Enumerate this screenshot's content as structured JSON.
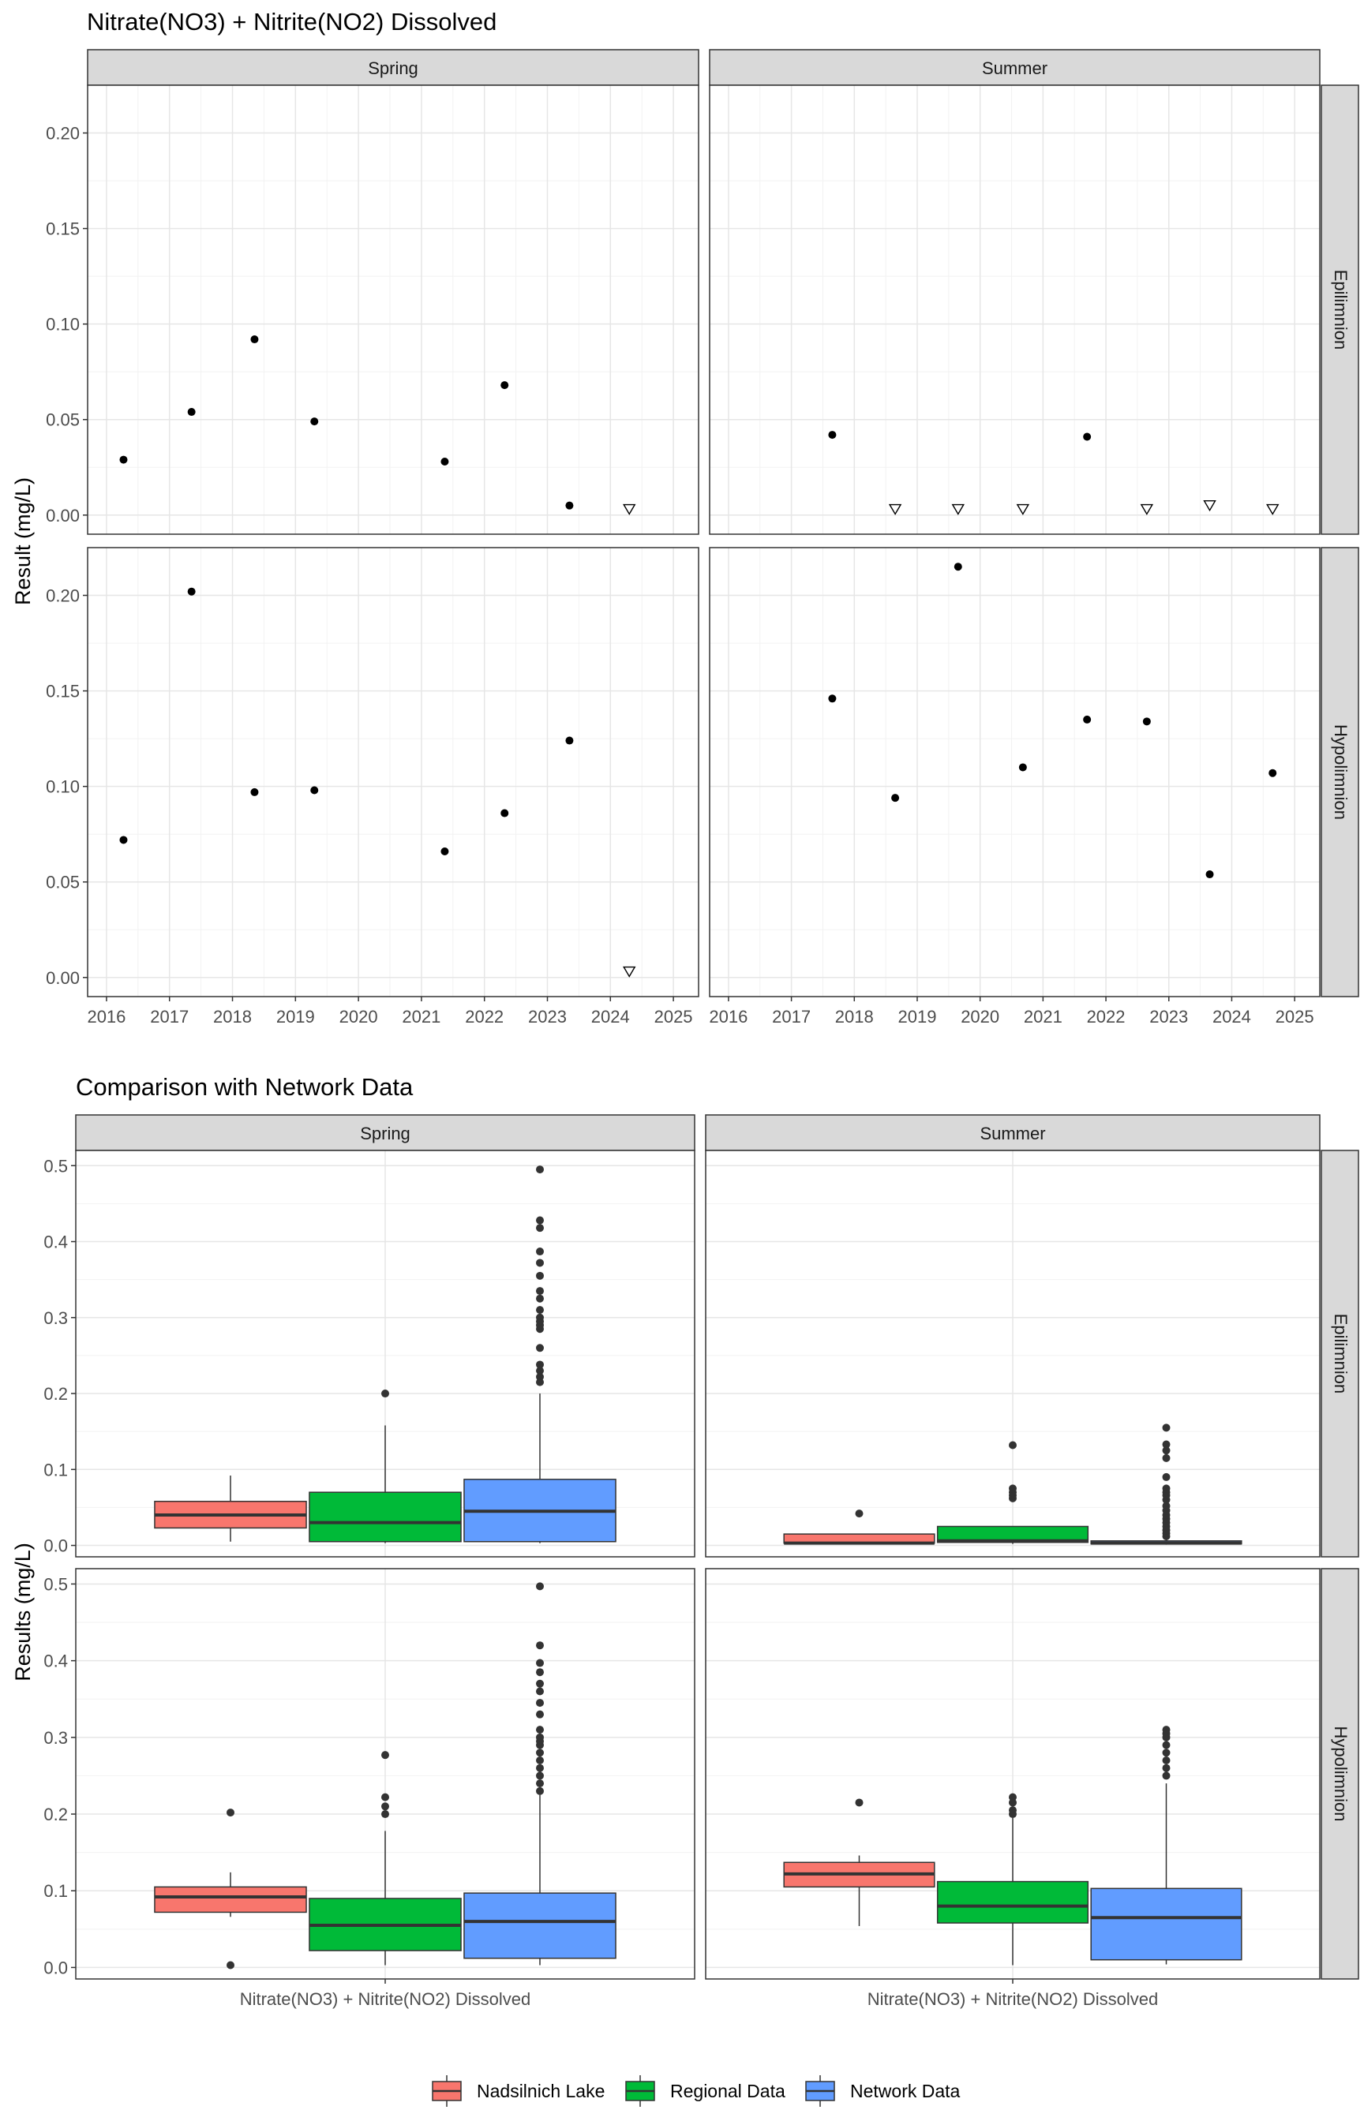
{
  "chart_data": [
    {
      "type": "scatter",
      "title": "Nitrate(NO3) + Nitrite(NO2) Dissolved",
      "ylabel": "Result (mg/L)",
      "xlabel": "",
      "xlim": [
        2015.7,
        2025.4
      ],
      "ylim": [
        -0.01,
        0.225
      ],
      "x_ticks": [
        "2016",
        "2017",
        "2018",
        "2019",
        "2020",
        "2021",
        "2022",
        "2023",
        "2024",
        "2025"
      ],
      "y_ticks": [
        "0.00",
        "0.05",
        "0.10",
        "0.15",
        "0.20"
      ],
      "col_facets": [
        "Spring",
        "Summer"
      ],
      "row_facets": [
        "Epilimnion",
        "Hypolimnion"
      ],
      "grid": true,
      "panels": [
        {
          "season": "Spring",
          "layer": "Epilimnion",
          "detected": [
            [
              2016.27,
              0.029
            ],
            [
              2017.35,
              0.054
            ],
            [
              2018.35,
              0.092
            ],
            [
              2019.3,
              0.049
            ],
            [
              2021.37,
              0.028
            ],
            [
              2022.32,
              0.068
            ],
            [
              2023.35,
              0.005
            ]
          ],
          "nondetect": [
            [
              2024.3,
              0.003
            ]
          ]
        },
        {
          "season": "Summer",
          "layer": "Epilimnion",
          "detected": [
            [
              2017.65,
              0.042
            ],
            [
              2021.7,
              0.041
            ]
          ],
          "nondetect": [
            [
              2018.65,
              0.003
            ],
            [
              2019.65,
              0.003
            ],
            [
              2020.68,
              0.003
            ],
            [
              2022.65,
              0.003
            ],
            [
              2023.65,
              0.005
            ],
            [
              2024.65,
              0.003
            ]
          ]
        },
        {
          "season": "Spring",
          "layer": "Hypolimnion",
          "detected": [
            [
              2016.27,
              0.072
            ],
            [
              2017.35,
              0.202
            ],
            [
              2018.35,
              0.097
            ],
            [
              2019.3,
              0.098
            ],
            [
              2021.37,
              0.066
            ],
            [
              2022.32,
              0.086
            ],
            [
              2023.35,
              0.124
            ]
          ],
          "nondetect": [
            [
              2024.3,
              0.003
            ]
          ]
        },
        {
          "season": "Summer",
          "layer": "Hypolimnion",
          "detected": [
            [
              2017.65,
              0.146
            ],
            [
              2018.65,
              0.094
            ],
            [
              2019.65,
              0.215
            ],
            [
              2020.68,
              0.11
            ],
            [
              2021.7,
              0.135
            ],
            [
              2022.65,
              0.134
            ],
            [
              2023.65,
              0.054
            ],
            [
              2024.65,
              0.107
            ]
          ],
          "nondetect": []
        }
      ]
    },
    {
      "type": "box",
      "title": "Comparison with Network Data",
      "ylabel": "Results (mg/L)",
      "x_category": "Nitrate(NO3) + Nitrite(NO2) Dissolved",
      "ylim": [
        -0.015,
        0.52
      ],
      "y_ticks": [
        "0.0",
        "0.1",
        "0.2",
        "0.3",
        "0.4",
        "0.5"
      ],
      "col_facets": [
        "Spring",
        "Summer"
      ],
      "row_facets": [
        "Epilimnion",
        "Hypolimnion"
      ],
      "grid": true,
      "legend_position": "bottom",
      "groups": [
        {
          "name": "Nadsilnich Lake",
          "color": "#F8766D"
        },
        {
          "name": "Regional Data",
          "color": "#00BA38"
        },
        {
          "name": "Network Data",
          "color": "#619CFF"
        }
      ],
      "panels": [
        {
          "season": "Spring",
          "layer": "Epilimnion",
          "boxes": [
            {
              "group": "Nadsilnich Lake",
              "min": 0.005,
              "q1": 0.023,
              "median": 0.04,
              "q3": 0.058,
              "max": 0.092,
              "outliers": []
            },
            {
              "group": "Regional Data",
              "min": 0.003,
              "q1": 0.005,
              "median": 0.03,
              "q3": 0.07,
              "max": 0.158,
              "outliers": [
                0.2
              ]
            },
            {
              "group": "Network Data",
              "min": 0.003,
              "q1": 0.005,
              "median": 0.045,
              "q3": 0.087,
              "max": 0.2,
              "outliers": [
                0.215,
                0.222,
                0.23,
                0.238,
                0.26,
                0.285,
                0.29,
                0.295,
                0.3,
                0.31,
                0.325,
                0.335,
                0.355,
                0.372,
                0.387,
                0.418,
                0.428,
                0.495
              ]
            }
          ]
        },
        {
          "season": "Summer",
          "layer": "Epilimnion",
          "boxes": [
            {
              "group": "Nadsilnich Lake",
              "min": 0.002,
              "q1": 0.003,
              "median": 0.003,
              "q3": 0.015,
              "max": 0.015,
              "outliers": [
                0.042
              ]
            },
            {
              "group": "Regional Data",
              "min": 0.002,
              "q1": 0.004,
              "median": 0.006,
              "q3": 0.025,
              "max": 0.025,
              "outliers": [
                0.062,
                0.066,
                0.07,
                0.075,
                0.132
              ]
            },
            {
              "group": "Network Data",
              "min": 0.001,
              "q1": 0.002,
              "median": 0.003,
              "q3": 0.006,
              "max": 0.01,
              "outliers": [
                0.012,
                0.016,
                0.02,
                0.025,
                0.03,
                0.035,
                0.04,
                0.046,
                0.052,
                0.06,
                0.066,
                0.07,
                0.075,
                0.09,
                0.115,
                0.125,
                0.133,
                0.155
              ]
            }
          ]
        },
        {
          "season": "Spring",
          "layer": "Hypolimnion",
          "boxes": [
            {
              "group": "Nadsilnich Lake",
              "min": 0.066,
              "q1": 0.072,
              "median": 0.092,
              "q3": 0.105,
              "max": 0.124,
              "outliers": [
                0.003,
                0.202
              ]
            },
            {
              "group": "Regional Data",
              "min": 0.003,
              "q1": 0.022,
              "median": 0.055,
              "q3": 0.09,
              "max": 0.178,
              "outliers": [
                0.2,
                0.21,
                0.222,
                0.277
              ]
            },
            {
              "group": "Network Data",
              "min": 0.003,
              "q1": 0.012,
              "median": 0.06,
              "q3": 0.097,
              "max": 0.225,
              "outliers": [
                0.23,
                0.24,
                0.25,
                0.26,
                0.27,
                0.28,
                0.29,
                0.295,
                0.3,
                0.31,
                0.33,
                0.345,
                0.36,
                0.37,
                0.385,
                0.397,
                0.42,
                0.497
              ]
            }
          ]
        },
        {
          "season": "Summer",
          "layer": "Hypolimnion",
          "boxes": [
            {
              "group": "Nadsilnich Lake",
              "min": 0.054,
              "q1": 0.105,
              "median": 0.122,
              "q3": 0.137,
              "max": 0.146,
              "outliers": [
                0.215
              ]
            },
            {
              "group": "Regional Data",
              "min": 0.003,
              "q1": 0.058,
              "median": 0.08,
              "q3": 0.112,
              "max": 0.195,
              "outliers": [
                0.2,
                0.205,
                0.215,
                0.222
              ]
            },
            {
              "group": "Network Data",
              "min": 0.004,
              "q1": 0.01,
              "median": 0.065,
              "q3": 0.103,
              "max": 0.24,
              "outliers": [
                0.25,
                0.26,
                0.27,
                0.28,
                0.29,
                0.3,
                0.305,
                0.31
              ]
            }
          ]
        }
      ]
    }
  ]
}
